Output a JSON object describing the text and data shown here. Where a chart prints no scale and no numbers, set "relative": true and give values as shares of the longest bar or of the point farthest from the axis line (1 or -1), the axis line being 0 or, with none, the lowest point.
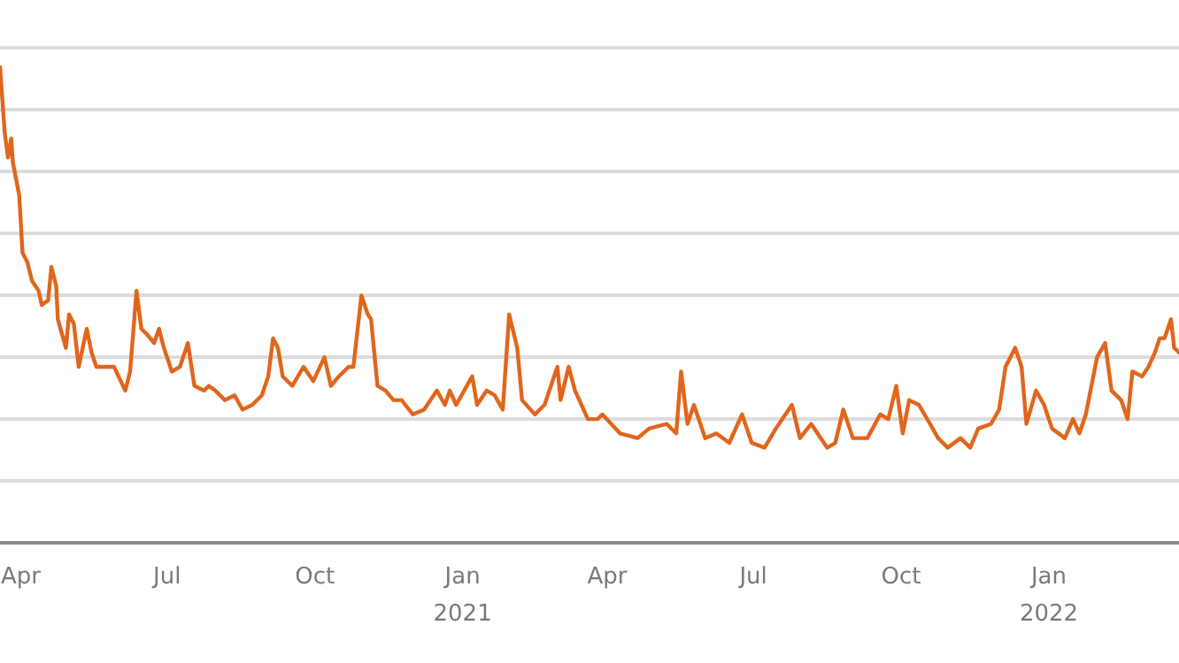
{
  "chart_data": {
    "type": "line",
    "relative": true,
    "grid": "y",
    "xlim": [
      "2020-03-19",
      "2022-03-23"
    ],
    "xticks": [
      {
        "value": "2020-04-01",
        "label": "Apr"
      },
      {
        "value": "2020-07-01",
        "label": "Jul"
      },
      {
        "value": "2020-10-01",
        "label": "Oct"
      },
      {
        "value": "2021-01-01",
        "label": "Jan\n2021"
      },
      {
        "value": "2021-04-01",
        "label": "Apr"
      },
      {
        "value": "2021-07-01",
        "label": "Jul"
      },
      {
        "value": "2021-10-01",
        "label": "Oct"
      },
      {
        "value": "2022-01-01",
        "label": "Jan\n2022"
      }
    ],
    "x": [
      "2020-03-19",
      "2020-03-22",
      "2020-03-24",
      "2020-03-26",
      "2020-03-27",
      "2020-03-31",
      "2020-04-02",
      "2020-04-05",
      "2020-04-08",
      "2020-04-12",
      "2020-04-14",
      "2020-04-18",
      "2020-04-20",
      "2020-04-23",
      "2020-04-24",
      "2020-04-29",
      "2020-05-01",
      "2020-05-04",
      "2020-05-07",
      "2020-05-12",
      "2020-05-15",
      "2020-05-18",
      "2020-05-24",
      "2020-05-29",
      "2020-06-05",
      "2020-06-08",
      "2020-06-12",
      "2020-06-15",
      "2020-06-18",
      "2020-06-23",
      "2020-06-26",
      "2020-06-29",
      "2020-07-04",
      "2020-07-09",
      "2020-07-14",
      "2020-07-18",
      "2020-07-24",
      "2020-07-27",
      "2020-07-31",
      "2020-08-06",
      "2020-08-12",
      "2020-08-17",
      "2020-08-23",
      "2020-08-29",
      "2020-09-02",
      "2020-09-05",
      "2020-09-08",
      "2020-09-11",
      "2020-09-17",
      "2020-09-24",
      "2020-09-30",
      "2020-10-07",
      "2020-10-11",
      "2020-10-16",
      "2020-10-22",
      "2020-10-25",
      "2020-10-30",
      "2020-11-03",
      "2020-11-05",
      "2020-11-09",
      "2020-11-14",
      "2020-11-19",
      "2020-11-24",
      "2020-12-01",
      "2020-12-08",
      "2020-12-16",
      "2020-12-21",
      "2020-12-24",
      "2020-12-28",
      "2021-01-07",
      "2021-01-10",
      "2021-01-16",
      "2021-01-21",
      "2021-01-26",
      "2021-01-30",
      "2021-02-04",
      "2021-02-07",
      "2021-02-15",
      "2021-02-21",
      "2021-03-01",
      "2021-03-03",
      "2021-03-08",
      "2021-03-12",
      "2021-03-20",
      "2021-03-26",
      "2021-03-29",
      "2021-04-09",
      "2021-04-20",
      "2021-04-27",
      "2021-05-08",
      "2021-05-14",
      "2021-05-17",
      "2021-05-21",
      "2021-05-25",
      "2021-06-01",
      "2021-06-08",
      "2021-06-16",
      "2021-06-24",
      "2021-06-30",
      "2021-07-08",
      "2021-07-15",
      "2021-07-25",
      "2021-07-30",
      "2021-08-06",
      "2021-08-16",
      "2021-08-21",
      "2021-08-26",
      "2021-09-01",
      "2021-09-10",
      "2021-09-18",
      "2021-09-23",
      "2021-09-28",
      "2021-10-02",
      "2021-10-06",
      "2021-10-12",
      "2021-10-19",
      "2021-10-24",
      "2021-10-30",
      "2021-11-07",
      "2021-11-13",
      "2021-11-18",
      "2021-11-26",
      "2021-12-01",
      "2021-12-05",
      "2021-12-11",
      "2021-12-15",
      "2021-12-18",
      "2021-12-24",
      "2021-12-29",
      "2022-01-03",
      "2022-01-11",
      "2022-01-16",
      "2022-01-20",
      "2022-01-24",
      "2022-01-31",
      "2022-02-05",
      "2022-02-09",
      "2022-02-15",
      "2022-02-19",
      "2022-02-22",
      "2022-02-28",
      "2022-03-04",
      "2022-03-08",
      "2022-03-11",
      "2022-03-14",
      "2022-03-18",
      "2022-03-20",
      "2022-03-23"
    ],
    "series": [
      {
        "color": "#e0661c",
        "values": [
          1.0,
          0.86,
          0.81,
          0.85,
          0.8,
          0.73,
          0.61,
          0.59,
          0.55,
          0.53,
          0.5,
          0.51,
          0.58,
          0.54,
          0.47,
          0.41,
          0.48,
          0.46,
          0.37,
          0.45,
          0.4,
          0.37,
          0.37,
          0.37,
          0.32,
          0.36,
          0.53,
          0.45,
          0.44,
          0.42,
          0.45,
          0.41,
          0.36,
          0.37,
          0.42,
          0.33,
          0.32,
          0.33,
          0.32,
          0.3,
          0.31,
          0.28,
          0.29,
          0.31,
          0.35,
          0.43,
          0.41,
          0.35,
          0.33,
          0.37,
          0.34,
          0.39,
          0.33,
          0.35,
          0.37,
          0.37,
          0.52,
          0.48,
          0.47,
          0.33,
          0.32,
          0.3,
          0.3,
          0.27,
          0.28,
          0.32,
          0.29,
          0.32,
          0.29,
          0.35,
          0.29,
          0.32,
          0.31,
          0.28,
          0.48,
          0.41,
          0.3,
          0.27,
          0.29,
          0.37,
          0.3,
          0.37,
          0.32,
          0.26,
          0.26,
          0.27,
          0.23,
          0.22,
          0.24,
          0.25,
          0.23,
          0.36,
          0.25,
          0.29,
          0.22,
          0.23,
          0.21,
          0.27,
          0.21,
          0.2,
          0.24,
          0.29,
          0.22,
          0.25,
          0.2,
          0.21,
          0.28,
          0.22,
          0.22,
          0.27,
          0.26,
          0.33,
          0.23,
          0.3,
          0.29,
          0.25,
          0.22,
          0.2,
          0.22,
          0.2,
          0.24,
          0.25,
          0.28,
          0.37,
          0.41,
          0.37,
          0.25,
          0.32,
          0.29,
          0.24,
          0.22,
          0.26,
          0.23,
          0.27,
          0.39,
          0.42,
          0.32,
          0.3,
          0.26,
          0.36,
          0.35,
          0.37,
          0.4,
          0.43,
          0.43,
          0.47,
          0.41,
          0.4
        ]
      }
    ]
  }
}
